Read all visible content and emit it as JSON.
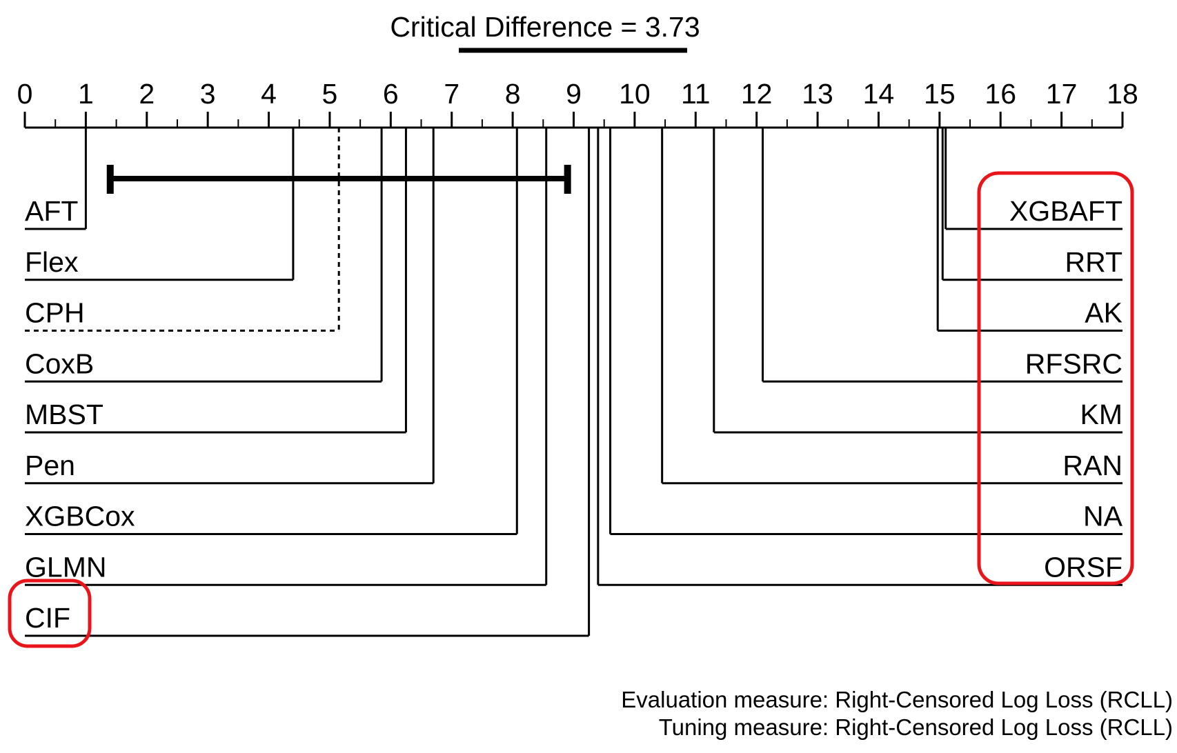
{
  "chart_data": {
    "type": "critical-difference-diagram",
    "title": "Critical Difference = 3.73",
    "critical_difference": 3.73,
    "axis": {
      "min": 0,
      "max": 18,
      "ticks": [
        "0",
        "1",
        "2",
        "3",
        "4",
        "5",
        "6",
        "7",
        "8",
        "9",
        "10",
        "11",
        "12",
        "13",
        "14",
        "15",
        "16",
        "17",
        "18"
      ]
    },
    "cd_bar": {
      "from": 1.4,
      "to": 8.9
    },
    "left_methods": [
      {
        "name": "AFT",
        "rank": 1.0,
        "dashed": false,
        "highlighted": false
      },
      {
        "name": "Flex",
        "rank": 4.4,
        "dashed": false,
        "highlighted": false
      },
      {
        "name": "CPH",
        "rank": 5.15,
        "dashed": true,
        "highlighted": false
      },
      {
        "name": "CoxB",
        "rank": 5.85,
        "dashed": false,
        "highlighted": false
      },
      {
        "name": "MBST",
        "rank": 6.25,
        "dashed": false,
        "highlighted": false
      },
      {
        "name": "Pen",
        "rank": 6.7,
        "dashed": false,
        "highlighted": false
      },
      {
        "name": "XGBCox",
        "rank": 8.07,
        "dashed": false,
        "highlighted": false
      },
      {
        "name": "GLMN",
        "rank": 8.55,
        "dashed": false,
        "highlighted": false
      },
      {
        "name": "CIF",
        "rank": 9.25,
        "dashed": false,
        "highlighted": true
      }
    ],
    "right_methods": [
      {
        "name": "XGBAFT",
        "rank": 15.1,
        "highlighted": true
      },
      {
        "name": "RRT",
        "rank": 15.05,
        "highlighted": true
      },
      {
        "name": "AK",
        "rank": 14.97,
        "highlighted": true
      },
      {
        "name": "RFSRC",
        "rank": 12.1,
        "highlighted": true
      },
      {
        "name": "KM",
        "rank": 11.3,
        "highlighted": true
      },
      {
        "name": "RAN",
        "rank": 10.45,
        "highlighted": true
      },
      {
        "name": "NA",
        "rank": 9.6,
        "highlighted": true
      },
      {
        "name": "ORSF",
        "rank": 9.4,
        "highlighted": true
      }
    ],
    "footnotes": [
      "Evaluation measure: Right-Censored Log Loss (RCLL)",
      "Tuning measure: Right-Censored Log Loss (RCLL)"
    ],
    "colors": {
      "line": "#000000",
      "highlight": "#e8161b"
    }
  }
}
